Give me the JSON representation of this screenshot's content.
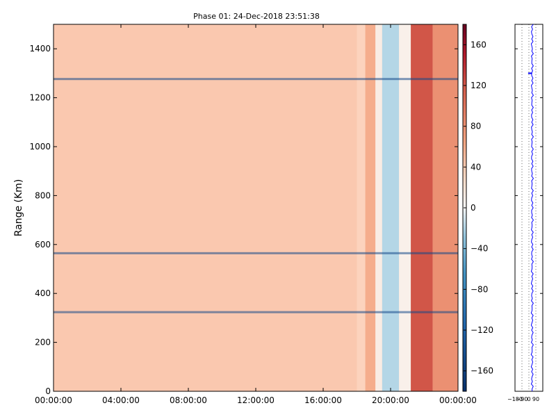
{
  "chart_data": {
    "type": "heatmap",
    "title": "Phase 01: 24-Dec-2018 23:51:38",
    "xlabel": "",
    "ylabel": "Range (Km)",
    "x_tick_labels": [
      "00:00:00",
      "04:00:00",
      "08:00:00",
      "12:00:00",
      "16:00:00",
      "20:00:00",
      "00:00:00"
    ],
    "x_range_hours": [
      0,
      24
    ],
    "y_ticks": [
      0,
      200,
      400,
      600,
      800,
      1000,
      1200,
      1400
    ],
    "y_range_km": [
      0,
      1500
    ],
    "colorbar": {
      "ticks": [
        160,
        120,
        80,
        40,
        0,
        -40,
        -80,
        -120,
        -160
      ],
      "tick_labels": [
        "160",
        "120",
        "80",
        "40",
        "0",
        "−40",
        "−80",
        "−120",
        "−160"
      ],
      "range": [
        -180,
        180
      ],
      "colormap": "RdBu_r",
      "low_color": "#08306b",
      "mid_color": "#f7f7f7",
      "high_color": "#67001f"
    },
    "background_value": 42,
    "columns": [
      {
        "x_start_hours": 18.0,
        "x_end_hours": 18.5,
        "value": 35
      },
      {
        "x_start_hours": 18.5,
        "x_end_hours": 19.1,
        "value": 60
      },
      {
        "x_start_hours": 19.1,
        "x_end_hours": 19.5,
        "value": 12
      },
      {
        "x_start_hours": 19.5,
        "x_end_hours": 20.5,
        "value": -20
      },
      {
        "x_start_hours": 20.5,
        "x_end_hours": 21.2,
        "value": 8
      },
      {
        "x_start_hours": 21.2,
        "x_end_hours": 22.5,
        "value": 120
      },
      {
        "x_start_hours": 22.5,
        "x_end_hours": 24.0,
        "value": 80
      }
    ],
    "stripes": [
      {
        "range_km": 1275,
        "value": -150
      },
      {
        "range_km": 563,
        "value": -150
      },
      {
        "range_km": 322,
        "value": -150
      }
    ],
    "side_panel": {
      "type": "line",
      "x_tick_labels": [
        "−180",
        "−90",
        "0",
        "90"
      ],
      "x_range": [
        -180,
        180
      ],
      "y_range_km": [
        0,
        1500
      ],
      "line_color": "#0000ff"
    }
  }
}
